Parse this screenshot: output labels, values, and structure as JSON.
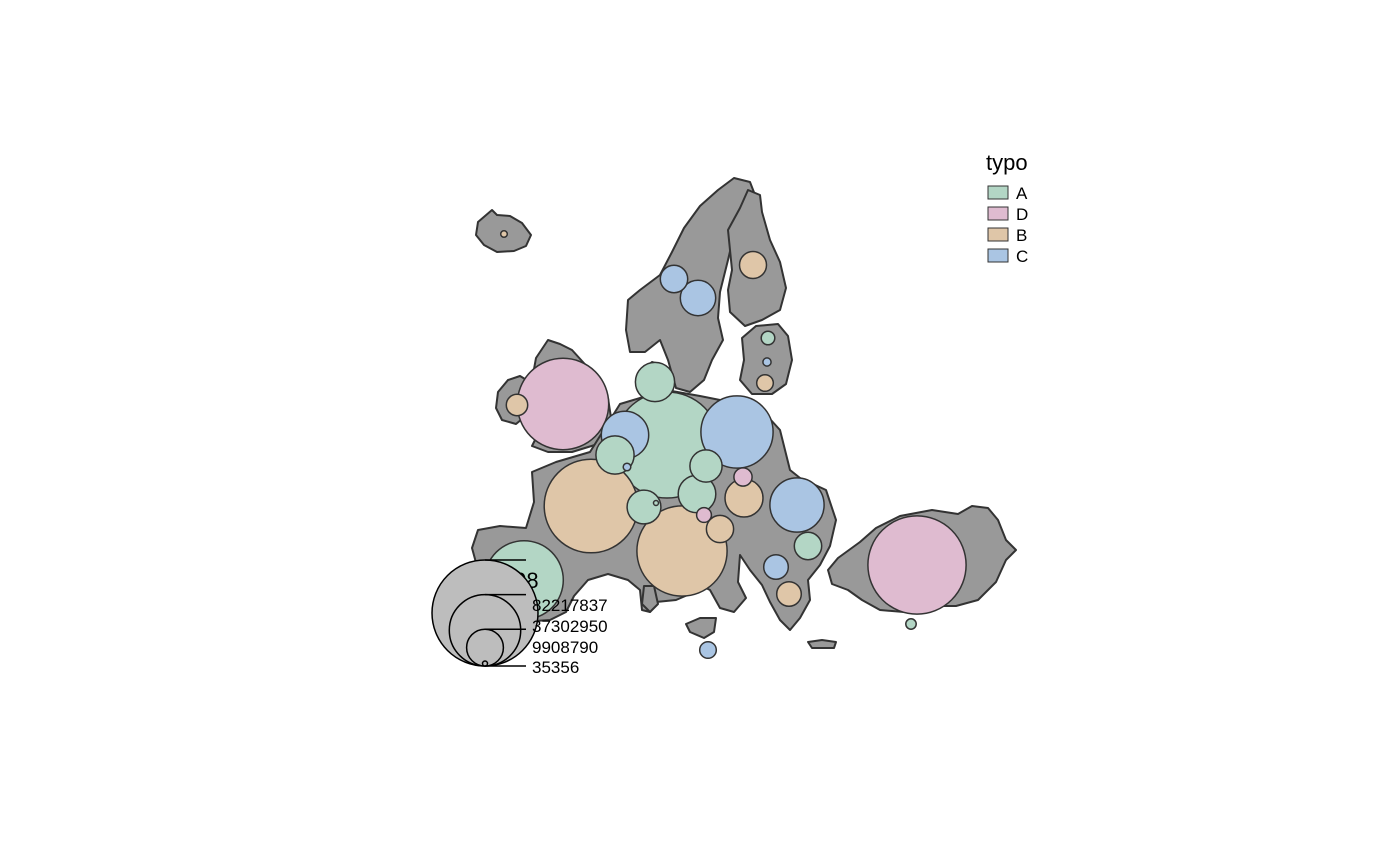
{
  "colors": {
    "land": "#999999",
    "border": "#333333",
    "typo": {
      "A": "#b3d6c5",
      "D": "#dfbbd0",
      "B": "#dfc6a8",
      "C": "#aac5e3"
    },
    "size_symbol": "#bdbdbd"
  },
  "legend_typo": {
    "title": "typo",
    "items": [
      {
        "key": "A",
        "label": "A"
      },
      {
        "key": "D",
        "label": "D"
      },
      {
        "key": "B",
        "label": "B"
      },
      {
        "key": "C",
        "label": "C"
      }
    ]
  },
  "legend_size": {
    "title": "pop2008",
    "values": [
      82217837,
      37302950,
      9908790,
      35356
    ],
    "labels": [
      "82217837",
      "37302950",
      "9908790",
      "35356"
    ]
  },
  "symbols": [
    {
      "typo": "D",
      "pop": 61179256
    },
    {
      "typo": "B",
      "pop": 64004333
    },
    {
      "typo": "A",
      "pop": 82217837
    },
    {
      "typo": "B",
      "pop": 59619290
    },
    {
      "typo": "A",
      "pop": 45283259
    },
    {
      "typo": "C",
      "pop": 38115641
    },
    {
      "typo": "D",
      "pop": 70586256
    },
    {
      "typo": "C",
      "pop": 21528627
    },
    {
      "typo": "A",
      "pop": 11213785
    },
    {
      "typo": "B",
      "pop": 10619921
    },
    {
      "typo": "C",
      "pop": 16405399
    },
    {
      "typo": "A",
      "pop": 10666866
    },
    {
      "typo": "A",
      "pop": 10381130
    },
    {
      "typo": "A",
      "pop": 8318592
    },
    {
      "typo": "A",
      "pop": 7593494
    },
    {
      "typo": "C",
      "pop": 9182927
    },
    {
      "typo": "C",
      "pop": 5475791
    },
    {
      "typo": "B",
      "pop": 5300484
    },
    {
      "typo": "A",
      "pop": 5475791
    },
    {
      "typo": "C",
      "pop": 4401335
    },
    {
      "typo": "B",
      "pop": 4401335
    },
    {
      "typo": "D",
      "pop": 2400000
    },
    {
      "typo": "B",
      "pop": 5412254
    },
    {
      "typo": "B",
      "pop": 3366357
    },
    {
      "typo": "C",
      "pop": 2270894
    },
    {
      "typo": "A",
      "pop": 1340935
    },
    {
      "typo": "B",
      "pop": 2025866
    },
    {
      "typo": "D",
      "pop": 1600000
    },
    {
      "typo": "C",
      "pop": 483799
    },
    {
      "typo": "C",
      "pop": 413609
    },
    {
      "typo": "B",
      "pop": 319368
    },
    {
      "typo": "A",
      "pop": 789269
    },
    {
      "typo": "C",
      "pop": 2000000
    },
    {
      "typo": "A",
      "pop": 35356
    }
  ]
}
